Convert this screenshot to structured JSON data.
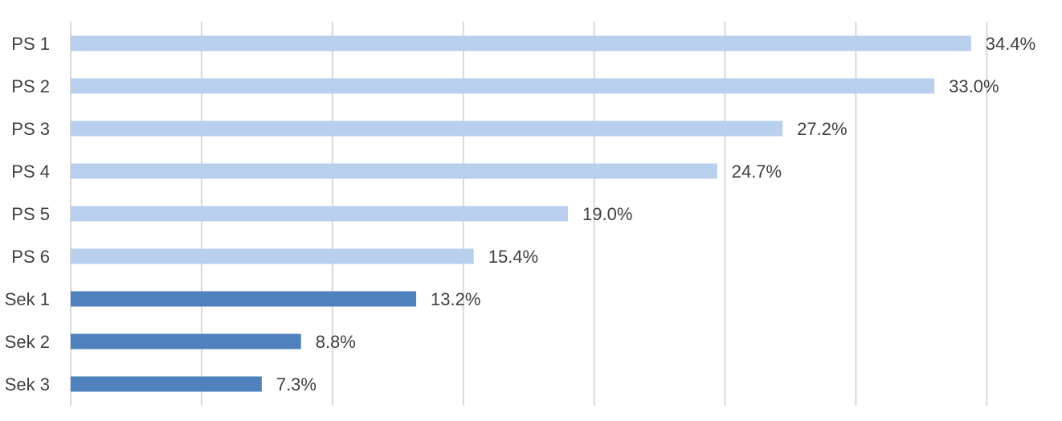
{
  "chart_data": {
    "type": "bar",
    "orientation": "horizontal",
    "title": "",
    "xlabel": "",
    "ylabel": "",
    "categories": [
      "PS 1",
      "PS 2",
      "PS 3",
      "PS 4",
      "PS 5",
      "PS 6",
      "Sek 1",
      "Sek 2",
      "Sek 3"
    ],
    "values": [
      34.4,
      33.0,
      27.2,
      24.7,
      19.0,
      15.4,
      13.2,
      8.8,
      7.3
    ],
    "data_labels": [
      "34.4%",
      "33.0%",
      "27.2%",
      "24.7%",
      "19.0%",
      "15.4%",
      "13.2%",
      "8.8%",
      "7.3%"
    ],
    "groups": [
      "PS",
      "PS",
      "PS",
      "PS",
      "PS",
      "PS",
      "Sek",
      "Sek",
      "Sek"
    ],
    "colors": {
      "PS": "#b8cfee",
      "Sek": "#4f81bd"
    },
    "xlim": [
      0,
      40
    ],
    "grid_step": 5,
    "grid": true,
    "legend": false
  }
}
